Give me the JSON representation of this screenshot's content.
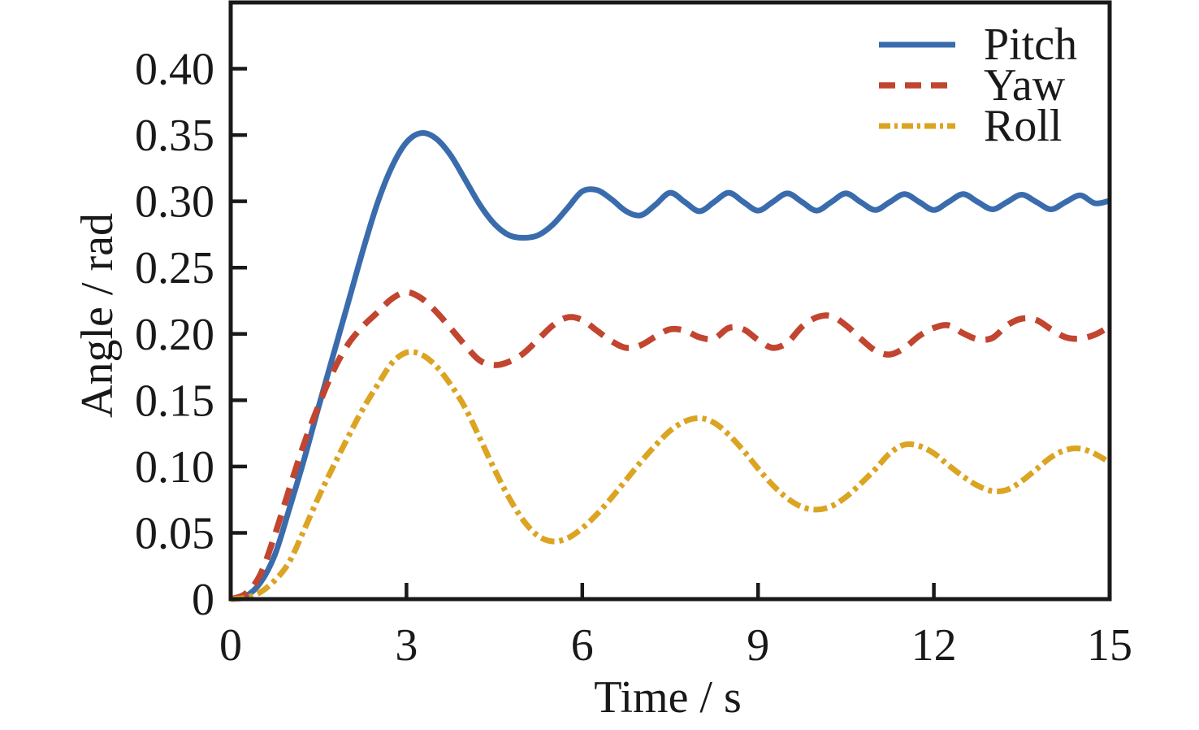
{
  "figure": {
    "background": "#ffffff",
    "text_color": "#191919",
    "axis_color": "#191919"
  },
  "chart_data": {
    "type": "line",
    "title": "",
    "xlabel": "Time / s",
    "ylabel": "Angle / rad",
    "xlim": [
      0,
      15
    ],
    "ylim": [
      0,
      0.45
    ],
    "grid": false,
    "legend_position": "upper right",
    "xticks": {
      "values": [
        0,
        3,
        6,
        9,
        12,
        15
      ],
      "labels": [
        "0",
        "3",
        "6",
        "9",
        "12",
        "15"
      ]
    },
    "yticks": {
      "values": [
        0,
        0.05,
        0.1,
        0.15,
        0.2,
        0.25,
        0.3,
        0.35,
        0.4
      ],
      "labels": [
        "0",
        "0.05",
        "0.10",
        "0.15",
        "0.20",
        "0.25",
        "0.30",
        "0.35",
        "0.40"
      ]
    },
    "x": [
      0,
      0.25,
      0.5,
      0.75,
      1,
      1.25,
      1.5,
      1.75,
      2,
      2.25,
      2.5,
      2.75,
      3,
      3.25,
      3.5,
      3.75,
      4,
      4.25,
      4.5,
      4.75,
      5,
      5.25,
      5.5,
      5.75,
      6,
      6.25,
      6.5,
      6.75,
      7,
      7.25,
      7.5,
      7.75,
      8,
      8.25,
      8.5,
      8.75,
      9,
      9.25,
      9.5,
      9.75,
      10,
      10.25,
      10.5,
      10.75,
      11,
      11.25,
      11.5,
      11.75,
      12,
      12.25,
      12.5,
      12.75,
      13,
      13.25,
      13.5,
      13.75,
      14,
      14.25,
      14.5,
      14.75,
      15
    ],
    "series": [
      {
        "name": "Pitch",
        "color": "#3a6cad",
        "line_style": "solid",
        "steady_state": 0.3,
        "peak": {
          "t": 3.25,
          "value": 0.352
        },
        "values": [
          0,
          0.002,
          0.012,
          0.033,
          0.068,
          0.105,
          0.145,
          0.184,
          0.223,
          0.262,
          0.298,
          0.326,
          0.3445,
          0.3515,
          0.3475,
          0.335,
          0.3165,
          0.2975,
          0.283,
          0.2745,
          0.2725,
          0.2745,
          0.2825,
          0.295,
          0.3075,
          0.3085,
          0.3015,
          0.2925,
          0.2895,
          0.2975,
          0.3065,
          0.2995,
          0.2925,
          0.2995,
          0.3065,
          0.2995,
          0.293,
          0.2995,
          0.306,
          0.2995,
          0.293,
          0.2995,
          0.306,
          0.2995,
          0.2935,
          0.2995,
          0.3055,
          0.2995,
          0.2935,
          0.2995,
          0.3055,
          0.2995,
          0.294,
          0.2995,
          0.305,
          0.2995,
          0.294,
          0.2995,
          0.3045,
          0.2985,
          0.3005
        ]
      },
      {
        "name": "Yaw",
        "color": "#c1452f",
        "line_style": "dashed",
        "steady_state": 0.2,
        "peak": {
          "t": 2.9,
          "value": 0.232
        },
        "values": [
          0,
          0.004,
          0.018,
          0.048,
          0.083,
          0.117,
          0.146,
          0.172,
          0.192,
          0.2055,
          0.216,
          0.2265,
          0.2315,
          0.227,
          0.217,
          0.2045,
          0.1915,
          0.18,
          0.1765,
          0.179,
          0.1855,
          0.196,
          0.2065,
          0.2125,
          0.2105,
          0.2025,
          0.1945,
          0.1895,
          0.1915,
          0.198,
          0.2035,
          0.2025,
          0.1975,
          0.1965,
          0.2045,
          0.2035,
          0.1955,
          0.1895,
          0.1935,
          0.2055,
          0.2125,
          0.2135,
          0.2065,
          0.1965,
          0.1875,
          0.1845,
          0.1895,
          0.1985,
          0.2045,
          0.2065,
          0.2005,
          0.196,
          0.197,
          0.2065,
          0.2115,
          0.2105,
          0.2035,
          0.1975,
          0.1965,
          0.1995,
          0.2055
        ]
      },
      {
        "name": "Roll",
        "color": "#dba422",
        "line_style": "dashdot",
        "steady_state": 0.1,
        "peak": {
          "t": 3.0,
          "value": 0.186
        },
        "values": [
          0,
          0.001,
          0.005,
          0.014,
          0.028,
          0.052,
          0.077,
          0.1,
          0.122,
          0.143,
          0.161,
          0.178,
          0.186,
          0.1845,
          0.176,
          0.162,
          0.1445,
          0.1215,
          0.098,
          0.0765,
          0.059,
          0.0475,
          0.0435,
          0.046,
          0.0535,
          0.064,
          0.0765,
          0.09,
          0.1035,
          0.116,
          0.127,
          0.134,
          0.1365,
          0.133,
          0.124,
          0.112,
          0.0985,
          0.086,
          0.076,
          0.0695,
          0.0675,
          0.07,
          0.077,
          0.087,
          0.098,
          0.11,
          0.1165,
          0.1155,
          0.11,
          0.101,
          0.0925,
          0.0855,
          0.0815,
          0.0825,
          0.089,
          0.098,
          0.107,
          0.1125,
          0.1135,
          0.1095,
          0.103
        ]
      }
    ]
  }
}
